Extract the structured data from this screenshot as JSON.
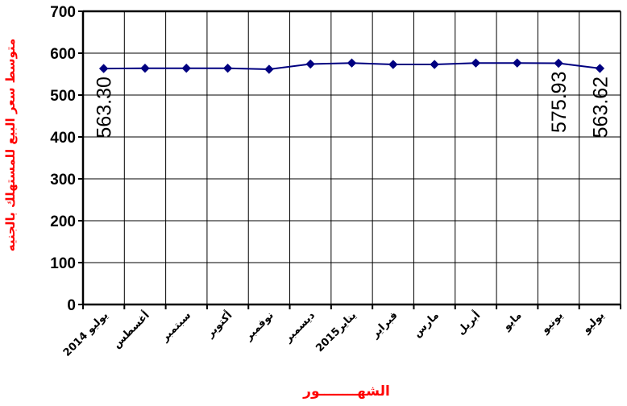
{
  "chart_data": {
    "type": "line",
    "categories": [
      "يوليو 2014",
      "أغسطس",
      "سبتمبر",
      "أكتوبر",
      "نوفمبر",
      "ديسمبر",
      "يناير2015",
      "فبراير",
      "مارس",
      "أبريل",
      "مايو",
      "يونيو",
      "يوليو"
    ],
    "series": [
      {
        "values": [
          563.3,
          564.0,
          564.0,
          564.0,
          561.5,
          574.0,
          576.5,
          573.0,
          573.0,
          576.5,
          576.5,
          575.93,
          563.62
        ]
      }
    ],
    "data_labels": [
      {
        "index": 0,
        "text": "563.30"
      },
      {
        "index": 11,
        "text": "575.93"
      },
      {
        "index": 12,
        "text": "563.62"
      }
    ],
    "ylabel": "متوسط سعر البيع للمستهلك بالجنيه",
    "xlabel": "الشهــــــــور",
    "ylim": [
      0,
      700
    ],
    "yticks": [
      0,
      100,
      200,
      300,
      400,
      500,
      600,
      700
    ],
    "grid": {
      "x": true,
      "y": true
    },
    "colors": {
      "line": "#000080",
      "marker": "#000080",
      "axis_title": "#ff0000",
      "grid": "#000000"
    }
  }
}
